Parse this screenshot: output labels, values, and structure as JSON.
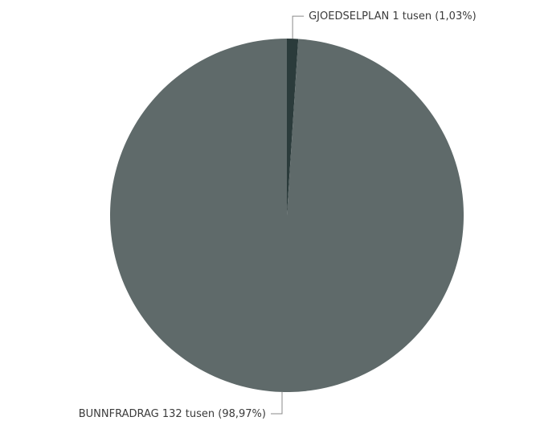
{
  "chart_data": {
    "type": "pie",
    "slices": [
      {
        "name": "BUNNFRADRAG",
        "value": 132,
        "percent": 98.97,
        "label": "BUNNFRADRAG 132 tusen (98,97%)",
        "color": "#5f6a6a"
      },
      {
        "name": "GJOEDSELPLAN",
        "value": 1,
        "percent": 1.03,
        "label": "GJOEDSELPLAN 1 tusen (1,03%)",
        "color": "#2b3b3b"
      }
    ],
    "legend": "none",
    "title": ""
  }
}
